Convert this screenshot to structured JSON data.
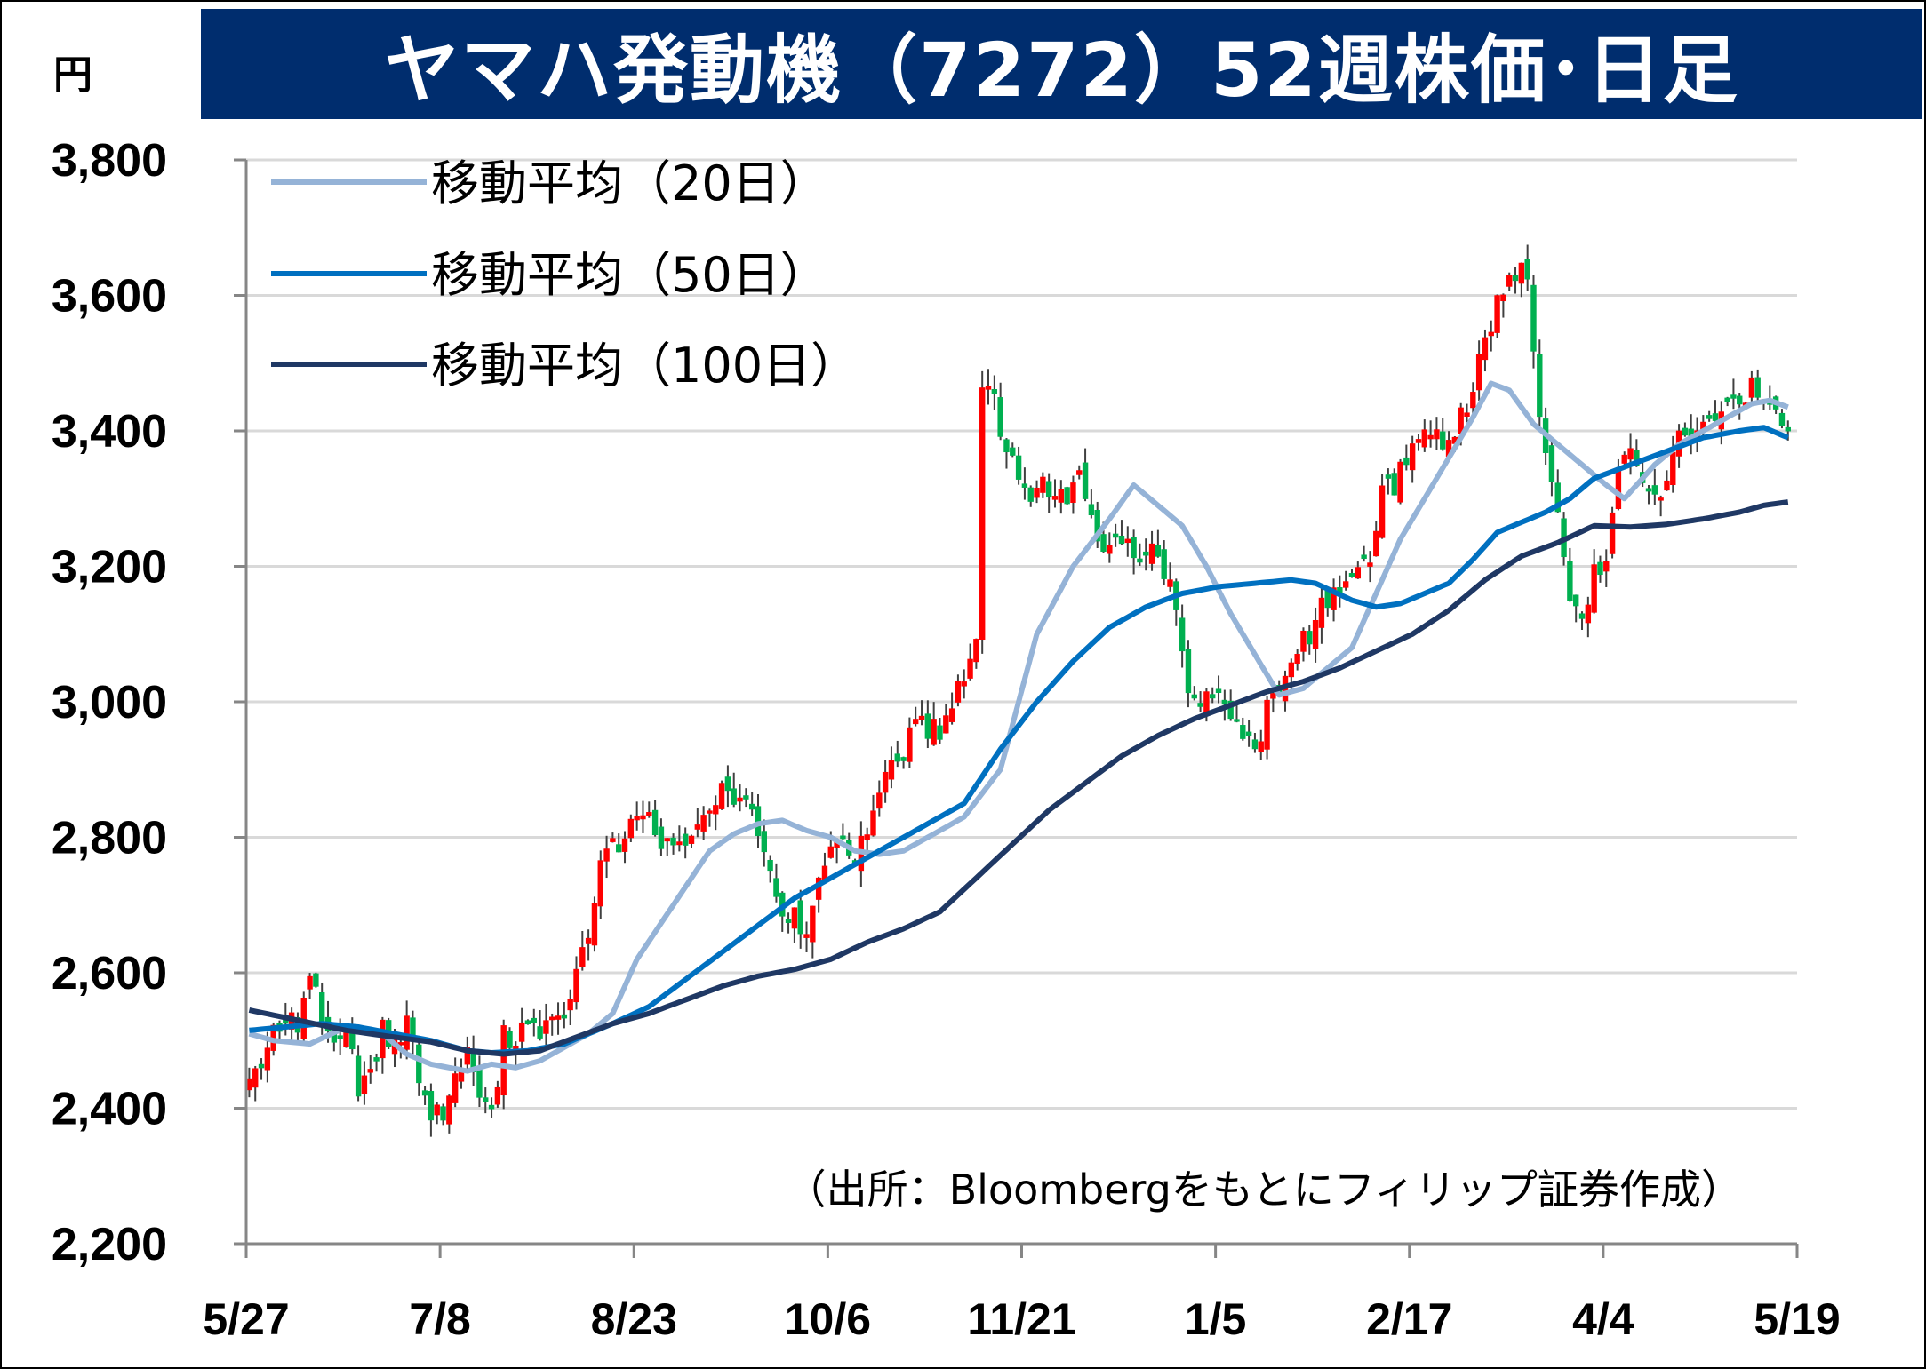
{
  "page": {
    "title": "ヤマハ発動機（7272）52週株価･日足",
    "unit_label": "円"
  },
  "chart_data": {
    "type": "candlestick",
    "title": "ヤマハ発動機（7272）52週株価･日足",
    "ylabel": "円",
    "ylim": [
      2200,
      3800
    ],
    "yticks": [
      "2,200",
      "2,400",
      "2,600",
      "2,800",
      "3,000",
      "3,200",
      "3,400",
      "3,600",
      "3,800"
    ],
    "grid": true,
    "xticks": [
      "5/27",
      "7/8",
      "8/23",
      "10/6",
      "11/21",
      "1/5",
      "2/17",
      "4/4",
      "5/19"
    ],
    "source": "（出所：Bloombergをもとにフィリップ証券作成）",
    "legend_position": "top-left",
    "colors": {
      "up": "#ff0000",
      "down": "#00b050",
      "ma20": "#95b3d7",
      "ma50": "#0070c0",
      "ma100": "#1f3864",
      "grid": "#d9d9d9",
      "title_bg": "#002d6e"
    },
    "series": [
      {
        "name": "移動平均（20日）",
        "anchors": [
          [
            0,
            2510
          ],
          [
            4,
            2500
          ],
          [
            10,
            2495
          ],
          [
            16,
            2520
          ],
          [
            22,
            2510
          ],
          [
            26,
            2480
          ],
          [
            30,
            2465
          ],
          [
            36,
            2455
          ],
          [
            40,
            2465
          ],
          [
            44,
            2460
          ],
          [
            48,
            2470
          ],
          [
            52,
            2490
          ],
          [
            56,
            2510
          ],
          [
            60,
            2540
          ],
          [
            64,
            2620
          ],
          [
            70,
            2700
          ],
          [
            76,
            2780
          ],
          [
            80,
            2805
          ],
          [
            84,
            2820
          ],
          [
            88,
            2825
          ],
          [
            92,
            2810
          ],
          [
            96,
            2800
          ],
          [
            100,
            2780
          ],
          [
            104,
            2775
          ],
          [
            108,
            2780
          ],
          [
            112,
            2800
          ],
          [
            118,
            2830
          ],
          [
            124,
            2900
          ],
          [
            130,
            3100
          ],
          [
            136,
            3200
          ],
          [
            142,
            3270
          ],
          [
            146,
            3320
          ],
          [
            150,
            3290
          ],
          [
            154,
            3260
          ],
          [
            158,
            3200
          ],
          [
            162,
            3130
          ],
          [
            166,
            3070
          ],
          [
            170,
            3010
          ],
          [
            174,
            3020
          ],
          [
            178,
            3050
          ],
          [
            182,
            3080
          ],
          [
            186,
            3160
          ],
          [
            190,
            3240
          ],
          [
            194,
            3300
          ],
          [
            198,
            3360
          ],
          [
            202,
            3420
          ],
          [
            205,
            3470
          ],
          [
            208,
            3460
          ],
          [
            212,
            3410
          ],
          [
            216,
            3380
          ],
          [
            220,
            3350
          ],
          [
            224,
            3320
          ],
          [
            227,
            3300
          ],
          [
            232,
            3350
          ],
          [
            236,
            3380
          ],
          [
            240,
            3400
          ],
          [
            244,
            3420
          ],
          [
            248,
            3440
          ],
          [
            251,
            3445
          ],
          [
            254,
            3435
          ]
        ]
      },
      {
        "name": "移動平均（50日）",
        "anchors": [
          [
            0,
            2515
          ],
          [
            6,
            2520
          ],
          [
            12,
            2525
          ],
          [
            18,
            2520
          ],
          [
            24,
            2510
          ],
          [
            30,
            2500
          ],
          [
            36,
            2485
          ],
          [
            40,
            2482
          ],
          [
            46,
            2485
          ],
          [
            52,
            2495
          ],
          [
            56,
            2510
          ],
          [
            60,
            2525
          ],
          [
            66,
            2550
          ],
          [
            72,
            2590
          ],
          [
            78,
            2630
          ],
          [
            84,
            2670
          ],
          [
            90,
            2710
          ],
          [
            96,
            2740
          ],
          [
            102,
            2770
          ],
          [
            108,
            2800
          ],
          [
            114,
            2830
          ],
          [
            118,
            2850
          ],
          [
            124,
            2930
          ],
          [
            130,
            3000
          ],
          [
            136,
            3060
          ],
          [
            142,
            3110
          ],
          [
            148,
            3140
          ],
          [
            154,
            3160
          ],
          [
            160,
            3170
          ],
          [
            166,
            3175
          ],
          [
            172,
            3180
          ],
          [
            176,
            3175
          ],
          [
            182,
            3150
          ],
          [
            186,
            3140
          ],
          [
            190,
            3145
          ],
          [
            194,
            3160
          ],
          [
            198,
            3175
          ],
          [
            202,
            3210
          ],
          [
            206,
            3250
          ],
          [
            210,
            3265
          ],
          [
            214,
            3280
          ],
          [
            218,
            3300
          ],
          [
            222,
            3330
          ],
          [
            228,
            3350
          ],
          [
            234,
            3370
          ],
          [
            240,
            3390
          ],
          [
            246,
            3400
          ],
          [
            250,
            3405
          ],
          [
            254,
            3390
          ]
        ]
      },
      {
        "name": "移動平均（100日）",
        "anchors": [
          [
            0,
            2545
          ],
          [
            8,
            2530
          ],
          [
            16,
            2515
          ],
          [
            24,
            2505
          ],
          [
            30,
            2498
          ],
          [
            36,
            2485
          ],
          [
            42,
            2480
          ],
          [
            48,
            2485
          ],
          [
            54,
            2505
          ],
          [
            60,
            2525
          ],
          [
            66,
            2540
          ],
          [
            72,
            2560
          ],
          [
            78,
            2580
          ],
          [
            84,
            2595
          ],
          [
            90,
            2605
          ],
          [
            96,
            2620
          ],
          [
            102,
            2645
          ],
          [
            108,
            2665
          ],
          [
            114,
            2690
          ],
          [
            120,
            2740
          ],
          [
            126,
            2790
          ],
          [
            132,
            2840
          ],
          [
            138,
            2880
          ],
          [
            144,
            2920
          ],
          [
            150,
            2950
          ],
          [
            156,
            2975
          ],
          [
            162,
            2995
          ],
          [
            168,
            3015
          ],
          [
            174,
            3030
          ],
          [
            180,
            3050
          ],
          [
            186,
            3075
          ],
          [
            192,
            3100
          ],
          [
            198,
            3135
          ],
          [
            204,
            3180
          ],
          [
            210,
            3215
          ],
          [
            216,
            3235
          ],
          [
            222,
            3260
          ],
          [
            228,
            3258
          ],
          [
            234,
            3262
          ],
          [
            240,
            3270
          ],
          [
            246,
            3280
          ],
          [
            250,
            3290
          ],
          [
            254,
            3295
          ]
        ]
      },
      {
        "name": "日足",
        "anchors": [
          [
            0,
            2430
          ],
          [
            3,
            2490
          ],
          [
            6,
            2530
          ],
          [
            8,
            2520
          ],
          [
            10,
            2600
          ],
          [
            12,
            2530
          ],
          [
            14,
            2510
          ],
          [
            16,
            2520
          ],
          [
            18,
            2420
          ],
          [
            20,
            2450
          ],
          [
            22,
            2520
          ],
          [
            24,
            2490
          ],
          [
            26,
            2540
          ],
          [
            28,
            2430
          ],
          [
            30,
            2400
          ],
          [
            32,
            2380
          ],
          [
            34,
            2440
          ],
          [
            36,
            2470
          ],
          [
            38,
            2420
          ],
          [
            40,
            2390
          ],
          [
            42,
            2510
          ],
          [
            44,
            2500
          ],
          [
            46,
            2520
          ],
          [
            48,
            2500
          ],
          [
            50,
            2530
          ],
          [
            52,
            2520
          ],
          [
            54,
            2600
          ],
          [
            56,
            2650
          ],
          [
            58,
            2750
          ],
          [
            60,
            2790
          ],
          [
            62,
            2800
          ],
          [
            64,
            2820
          ],
          [
            66,
            2830
          ],
          [
            68,
            2800
          ],
          [
            70,
            2790
          ],
          [
            72,
            2770
          ],
          [
            74,
            2810
          ],
          [
            76,
            2850
          ],
          [
            78,
            2880
          ],
          [
            80,
            2860
          ],
          [
            82,
            2840
          ],
          [
            84,
            2820
          ],
          [
            86,
            2750
          ],
          [
            88,
            2700
          ],
          [
            90,
            2680
          ],
          [
            92,
            2660
          ],
          [
            94,
            2740
          ],
          [
            96,
            2790
          ],
          [
            98,
            2780
          ],
          [
            100,
            2770
          ],
          [
            102,
            2810
          ],
          [
            104,
            2880
          ],
          [
            106,
            2900
          ],
          [
            108,
            2910
          ],
          [
            110,
            2980
          ],
          [
            112,
            2960
          ],
          [
            114,
            2950
          ],
          [
            116,
            3000
          ],
          [
            118,
            3040
          ],
          [
            120,
            3080
          ],
          [
            121,
            3480
          ],
          [
            123,
            3440
          ],
          [
            125,
            3380
          ],
          [
            127,
            3340
          ],
          [
            129,
            3300
          ],
          [
            131,
            3330
          ],
          [
            133,
            3310
          ],
          [
            135,
            3300
          ],
          [
            137,
            3330
          ],
          [
            139,
            3280
          ],
          [
            141,
            3220
          ],
          [
            143,
            3240
          ],
          [
            145,
            3230
          ],
          [
            147,
            3210
          ],
          [
            149,
            3220
          ],
          [
            151,
            3200
          ],
          [
            153,
            3130
          ],
          [
            155,
            3000
          ],
          [
            157,
            2990
          ],
          [
            159,
            3020
          ],
          [
            161,
            3000
          ],
          [
            163,
            2960
          ],
          [
            165,
            2940
          ],
          [
            167,
            2960
          ],
          [
            169,
            3010
          ],
          [
            171,
            3030
          ],
          [
            173,
            3070
          ],
          [
            175,
            3100
          ],
          [
            177,
            3140
          ],
          [
            179,
            3160
          ],
          [
            181,
            3180
          ],
          [
            183,
            3200
          ],
          [
            185,
            3220
          ],
          [
            187,
            3300
          ],
          [
            189,
            3320
          ],
          [
            191,
            3360
          ],
          [
            193,
            3380
          ],
          [
            195,
            3390
          ],
          [
            197,
            3380
          ],
          [
            199,
            3400
          ],
          [
            201,
            3430
          ],
          [
            203,
            3500
          ],
          [
            205,
            3560
          ],
          [
            207,
            3620
          ],
          [
            209,
            3640
          ],
          [
            211,
            3630
          ],
          [
            212,
            3530
          ],
          [
            214,
            3350
          ],
          [
            216,
            3280
          ],
          [
            218,
            3160
          ],
          [
            220,
            3120
          ],
          [
            222,
            3190
          ],
          [
            224,
            3210
          ],
          [
            226,
            3340
          ],
          [
            228,
            3370
          ],
          [
            230,
            3320
          ],
          [
            232,
            3300
          ],
          [
            234,
            3340
          ],
          [
            236,
            3390
          ],
          [
            238,
            3390
          ],
          [
            240,
            3400
          ],
          [
            242,
            3410
          ],
          [
            244,
            3430
          ],
          [
            246,
            3450
          ],
          [
            248,
            3470
          ],
          [
            250,
            3460
          ],
          [
            252,
            3430
          ],
          [
            254,
            3380
          ]
        ]
      }
    ]
  }
}
